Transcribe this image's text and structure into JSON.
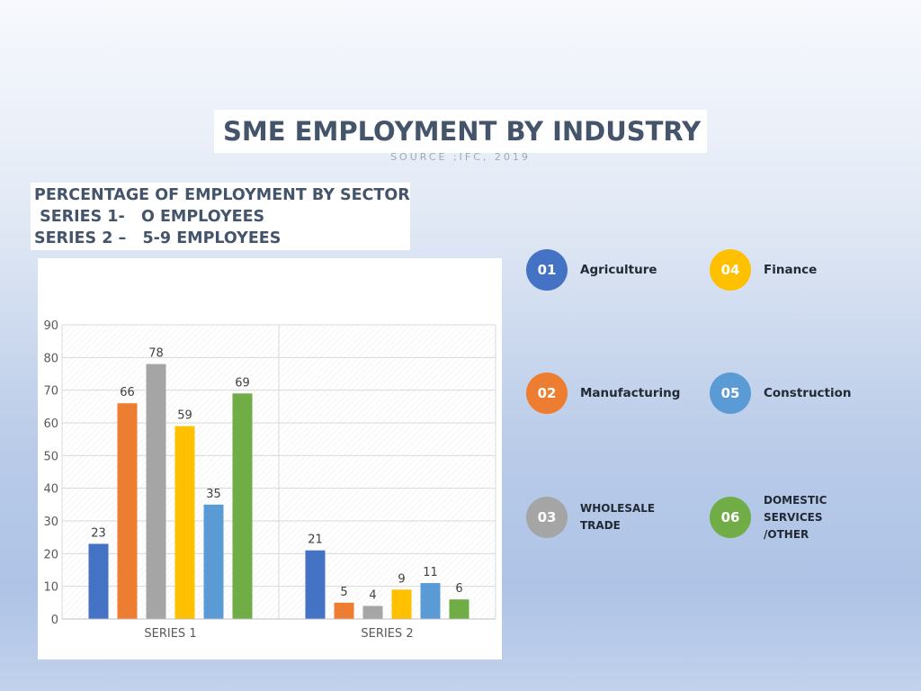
{
  "title": "SME EMPLOYMENT BY INDUSTRY",
  "source": "SOURCE ;IFC, 2019",
  "subtitle_lines": [
    "PERCENTAGE OF EMPLOYMENT BY SECTOR",
    " SERIES 1-   O EMPLOYEES",
    "SERIES 2 –   5-9 EMPLOYEES"
  ],
  "legend": [
    {
      "number": "01",
      "label": "Agriculture",
      "color": "#4472c4"
    },
    {
      "number": "02",
      "label": "Manufacturing",
      "color": "#ed7d31"
    },
    {
      "number": "03",
      "label": "WHOLESALE\nTRADE",
      "color": "#a5a5a5"
    },
    {
      "number": "04",
      "label": "Finance",
      "color": "#ffc000"
    },
    {
      "number": "05",
      "label": "Construction",
      "color": "#5b9bd5"
    },
    {
      "number": "06",
      "label": "DOMESTIC\nSERVICES\n/OTHER",
      "color": "#70ad47"
    }
  ],
  "chart_data": {
    "type": "bar",
    "categories": [
      "SERIES 1",
      "SERIES 2"
    ],
    "series": [
      {
        "values": [
          23,
          21
        ],
        "color": "#4472c4"
      },
      {
        "values": [
          66,
          5
        ],
        "color": "#ed7d31"
      },
      {
        "values": [
          78,
          4
        ],
        "color": "#a5a5a5"
      },
      {
        "values": [
          59,
          9
        ],
        "color": "#ffc000"
      },
      {
        "values": [
          35,
          11
        ],
        "color": "#5b9bd5"
      },
      {
        "values": [
          69,
          6
        ],
        "color": "#70ad47"
      }
    ],
    "ylim": [
      0,
      90
    ],
    "yticks": [
      "0",
      "10",
      "20",
      "30",
      "40",
      "50",
      "60",
      "70",
      "80",
      "90"
    ],
    "grid": true,
    "data_labels": true
  }
}
